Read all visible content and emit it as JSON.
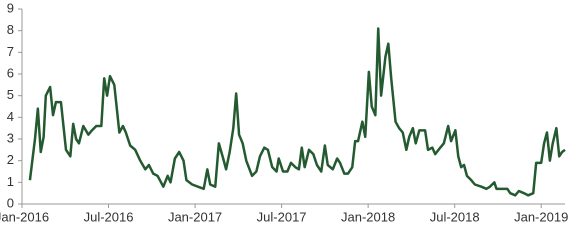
{
  "chart_data": {
    "type": "line",
    "series": [
      {
        "color": "#245a30",
        "x": [
          0.55,
          0.9,
          1.1,
          1.3,
          1.5,
          1.65,
          1.95,
          2.15,
          2.35,
          2.7,
          3.05,
          3.35,
          3.55,
          3.75,
          3.95,
          4.25,
          4.6,
          4.85,
          5.15,
          5.5,
          5.7,
          5.9,
          6.1,
          6.4,
          6.75,
          7.0,
          7.2,
          7.5,
          7.85,
          8.2,
          8.55,
          8.8,
          9.1,
          9.4,
          9.8,
          10.1,
          10.3,
          10.6,
          10.9,
          11.2,
          11.4,
          11.8,
          12.2,
          12.6,
          12.85,
          13.05,
          13.4,
          13.65,
          13.95,
          14.15,
          14.4,
          14.65,
          14.85,
          15.05,
          15.3,
          15.55,
          15.95,
          16.25,
          16.5,
          16.8,
          17.05,
          17.35,
          17.65,
          17.8,
          18.1,
          18.4,
          18.65,
          18.95,
          19.2,
          19.4,
          19.6,
          19.9,
          20.2,
          20.45,
          20.75,
          21.0,
          21.2,
          21.55,
          21.85,
          22.05,
          22.35,
          22.6,
          22.9,
          23.1,
          23.3,
          23.6,
          23.8,
          24.05,
          24.25,
          24.5,
          24.7,
          24.9,
          25.2,
          25.4,
          25.6,
          25.9,
          26.15,
          26.4,
          26.65,
          26.85,
          27.1,
          27.3,
          27.55,
          27.95,
          28.15,
          28.45,
          28.65,
          29.0,
          29.25,
          29.55,
          29.75,
          30.05,
          30.25,
          30.45,
          30.65,
          30.85,
          31.15,
          31.4,
          31.85,
          32.2,
          32.45,
          32.75,
          32.9,
          33.2,
          33.65,
          33.85,
          34.2,
          34.45,
          34.8,
          35.1,
          35.45,
          35.65,
          36.0,
          36.2,
          36.4,
          36.6,
          36.8,
          37.05,
          37.25,
          37.45,
          37.65
        ],
        "values": [
          1.1,
          3.0,
          4.4,
          2.4,
          3.1,
          5.0,
          5.4,
          4.1,
          4.7,
          4.7,
          2.5,
          2.2,
          3.7,
          3.0,
          2.8,
          3.6,
          3.2,
          3.4,
          3.6,
          3.6,
          5.8,
          5.0,
          5.9,
          5.5,
          3.3,
          3.6,
          3.3,
          2.7,
          2.5,
          2.0,
          1.6,
          1.8,
          1.4,
          1.3,
          0.8,
          1.3,
          1.0,
          2.1,
          2.4,
          2.0,
          1.1,
          0.9,
          0.8,
          0.7,
          1.6,
          0.9,
          0.8,
          2.8,
          2.1,
          1.6,
          2.4,
          3.5,
          5.1,
          3.2,
          2.8,
          2.0,
          1.3,
          1.5,
          2.2,
          2.6,
          2.5,
          1.7,
          1.5,
          2.1,
          1.5,
          1.5,
          1.9,
          1.7,
          1.6,
          2.6,
          1.7,
          2.5,
          2.3,
          1.8,
          1.5,
          2.7,
          1.8,
          1.6,
          2.1,
          1.9,
          1.4,
          1.4,
          1.7,
          2.9,
          2.9,
          3.8,
          3.1,
          6.1,
          4.5,
          4.1,
          8.1,
          5.0,
          6.8,
          7.4,
          5.8,
          3.8,
          3.5,
          3.3,
          2.5,
          3.1,
          3.5,
          2.8,
          3.4,
          3.4,
          2.5,
          2.6,
          2.3,
          2.6,
          2.8,
          3.6,
          2.9,
          3.4,
          2.2,
          1.7,
          1.8,
          1.3,
          1.1,
          0.9,
          0.8,
          0.7,
          0.8,
          1.0,
          0.7,
          0.7,
          0.7,
          0.5,
          0.4,
          0.6,
          0.5,
          0.4,
          0.5,
          1.9,
          1.9,
          2.8,
          3.3,
          2.0,
          2.8,
          3.5,
          2.2,
          2.4,
          2.5
        ]
      }
    ],
    "xlim": [
      0,
      37.65
    ],
    "xticks": [
      {
        "value": 0,
        "label": "Jan-2016"
      },
      {
        "value": 6,
        "label": "Jul-2016"
      },
      {
        "value": 12,
        "label": "Jan-2017"
      },
      {
        "value": 18,
        "label": "Jul-2017"
      },
      {
        "value": 24,
        "label": "Jan-2018"
      },
      {
        "value": 30,
        "label": "Jul-2018"
      },
      {
        "value": 36,
        "label": "Jan-2019"
      }
    ],
    "ylim": [
      0,
      9
    ],
    "yticks": [
      0,
      1,
      2,
      3,
      4,
      5,
      6,
      7,
      8,
      9
    ],
    "grid": false
  }
}
